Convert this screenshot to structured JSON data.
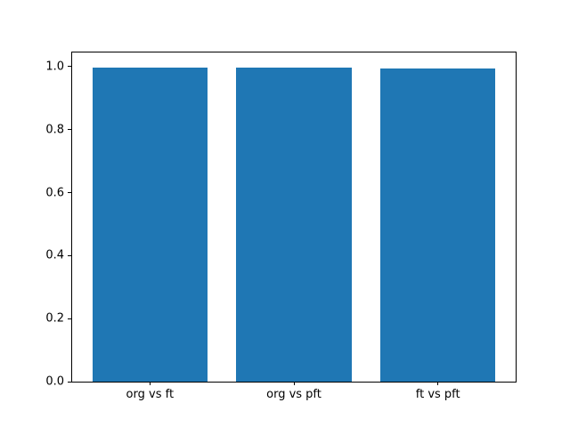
{
  "chart_data": {
    "type": "bar",
    "title": "",
    "xlabel": "",
    "ylabel": "",
    "categories": [
      "org vs ft",
      "org vs pft",
      "ft vs pft"
    ],
    "values": [
      0.997,
      0.997,
      0.995
    ],
    "bar_color": "#1f77b4",
    "bar_width": 0.8,
    "xlim": [
      -0.54,
      2.54
    ],
    "ylim": [
      0,
      1.045
    ],
    "yticks": [
      0.0,
      0.2,
      0.4,
      0.6,
      0.8,
      1.0
    ],
    "ytick_labels": [
      "0.0",
      "0.2",
      "0.4",
      "0.6",
      "0.8",
      "1.0"
    ],
    "grid": false,
    "legend": false
  },
  "figure": {
    "background": "#ffffff",
    "spine_color": "#000000",
    "text_color": "#000000"
  }
}
